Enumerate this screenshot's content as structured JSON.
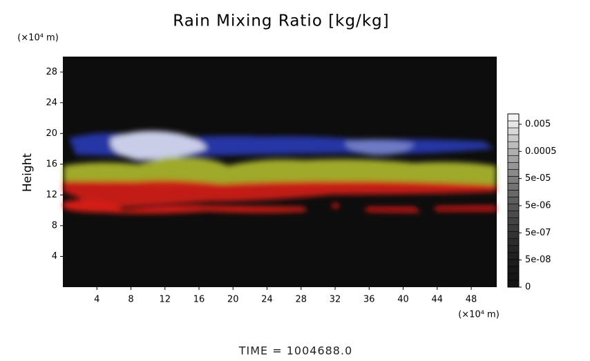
{
  "chart_data": {
    "type": "field",
    "title": "Rain Mixing Ratio [kg/kg]",
    "y_label": "Height",
    "y_unit": "(×10⁴ m)",
    "x_unit": "(×10⁴ m)",
    "footer": "TIME = 1004688.0",
    "xlim": [
      0,
      51
    ],
    "xticks": [
      4,
      8,
      12,
      16,
      20,
      24,
      28,
      32,
      36,
      40,
      44,
      48
    ],
    "ylim": [
      0,
      30
    ],
    "yticks": [
      4,
      8,
      12,
      16,
      20,
      24,
      28
    ],
    "colorbar_ticks": [
      0,
      {
        "value": 5e-08,
        "label": "5e-08"
      },
      {
        "value": 5e-07,
        "label": "5e-07"
      },
      {
        "value": 5e-06,
        "label": "5e-06"
      },
      {
        "value": 5e-05,
        "label": "5e-05"
      },
      0.0005,
      0.005
    ]
  }
}
